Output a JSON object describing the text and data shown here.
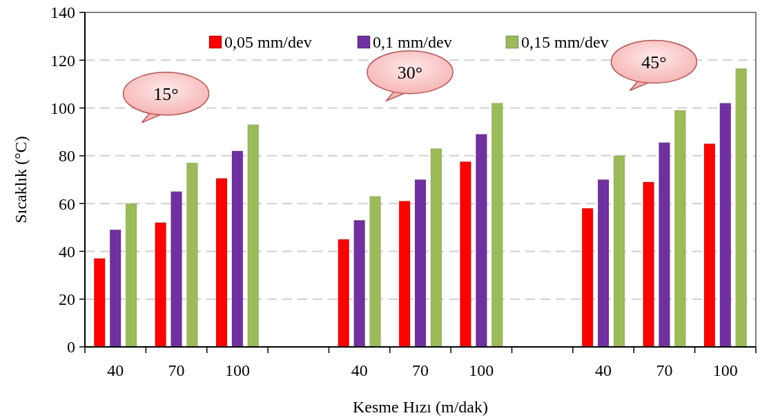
{
  "chart_data": {
    "type": "bar",
    "xlabel": "Kesme Hızı (m/dak)",
    "ylabel": "Sıcaklık (°C)",
    "categories": [
      "40",
      "70",
      "100",
      null,
      "40",
      "70",
      "100",
      null,
      "40",
      "70",
      "100"
    ],
    "series": [
      {
        "name": "0,05 mm/dev",
        "color": "#ff0000",
        "values": [
          37,
          52,
          70.5,
          null,
          45,
          61,
          77.5,
          null,
          58,
          69,
          85
        ]
      },
      {
        "name": "0,1 mm/dev",
        "color": "#7030a0",
        "values": [
          49,
          65,
          82,
          null,
          53,
          70,
          89,
          null,
          70,
          85.5,
          102
        ]
      },
      {
        "name": "0,15 mm/dev",
        "color": "#9bbb59",
        "values": [
          60,
          77,
          93,
          null,
          63,
          83,
          102,
          null,
          80,
          99,
          116.5
        ]
      }
    ],
    "ylim": [
      0,
      140
    ],
    "yticks": [
      0,
      20,
      40,
      60,
      80,
      100,
      120,
      140
    ],
    "grid": "y",
    "legend": "top",
    "annotations": [
      "15°",
      "30°",
      "45°"
    ]
  }
}
